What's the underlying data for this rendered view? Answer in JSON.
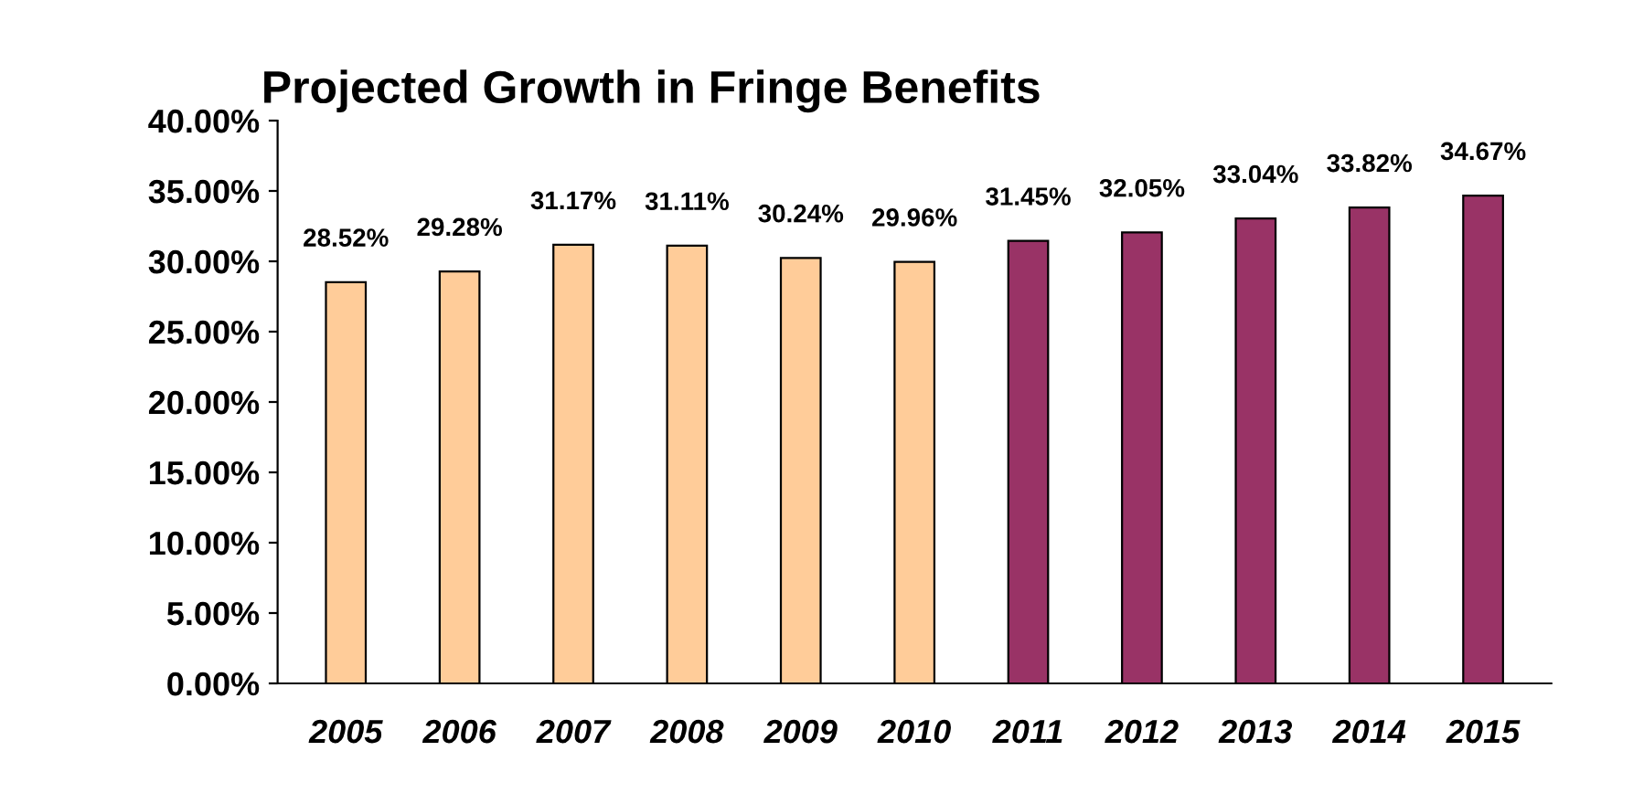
{
  "chart_data": {
    "type": "bar",
    "title": "Projected Growth in Fringe Benefits",
    "categories": [
      "2005",
      "2006",
      "2007",
      "2008",
      "2009",
      "2010",
      "2011",
      "2012",
      "2013",
      "2014",
      "2015"
    ],
    "values": [
      28.52,
      29.28,
      31.17,
      31.11,
      30.24,
      29.96,
      31.45,
      32.05,
      33.04,
      33.82,
      34.67
    ],
    "colors": [
      "#ffcc99",
      "#ffcc99",
      "#ffcc99",
      "#ffcc99",
      "#ffcc99",
      "#ffcc99",
      "#993366",
      "#993366",
      "#993366",
      "#993366",
      "#993366"
    ],
    "value_labels": [
      "28.52%",
      "29.28%",
      "31.17%",
      "31.11%",
      "30.24%",
      "29.96%",
      "31.45%",
      "32.05%",
      "33.04%",
      "33.82%",
      "34.67%"
    ],
    "ylim": [
      0,
      40
    ],
    "yticks": [
      {
        "value": 0,
        "label": "0.00%"
      },
      {
        "value": 5,
        "label": "5.00%"
      },
      {
        "value": 10,
        "label": "10.00%"
      },
      {
        "value": 15,
        "label": "15.00%"
      },
      {
        "value": 20,
        "label": "20.00%"
      },
      {
        "value": 25,
        "label": "25.00%"
      },
      {
        "value": 30,
        "label": "30.00%"
      },
      {
        "value": 35,
        "label": "35.00%"
      },
      {
        "value": 40,
        "label": "40.00%"
      }
    ],
    "grid": false,
    "legend": false
  }
}
